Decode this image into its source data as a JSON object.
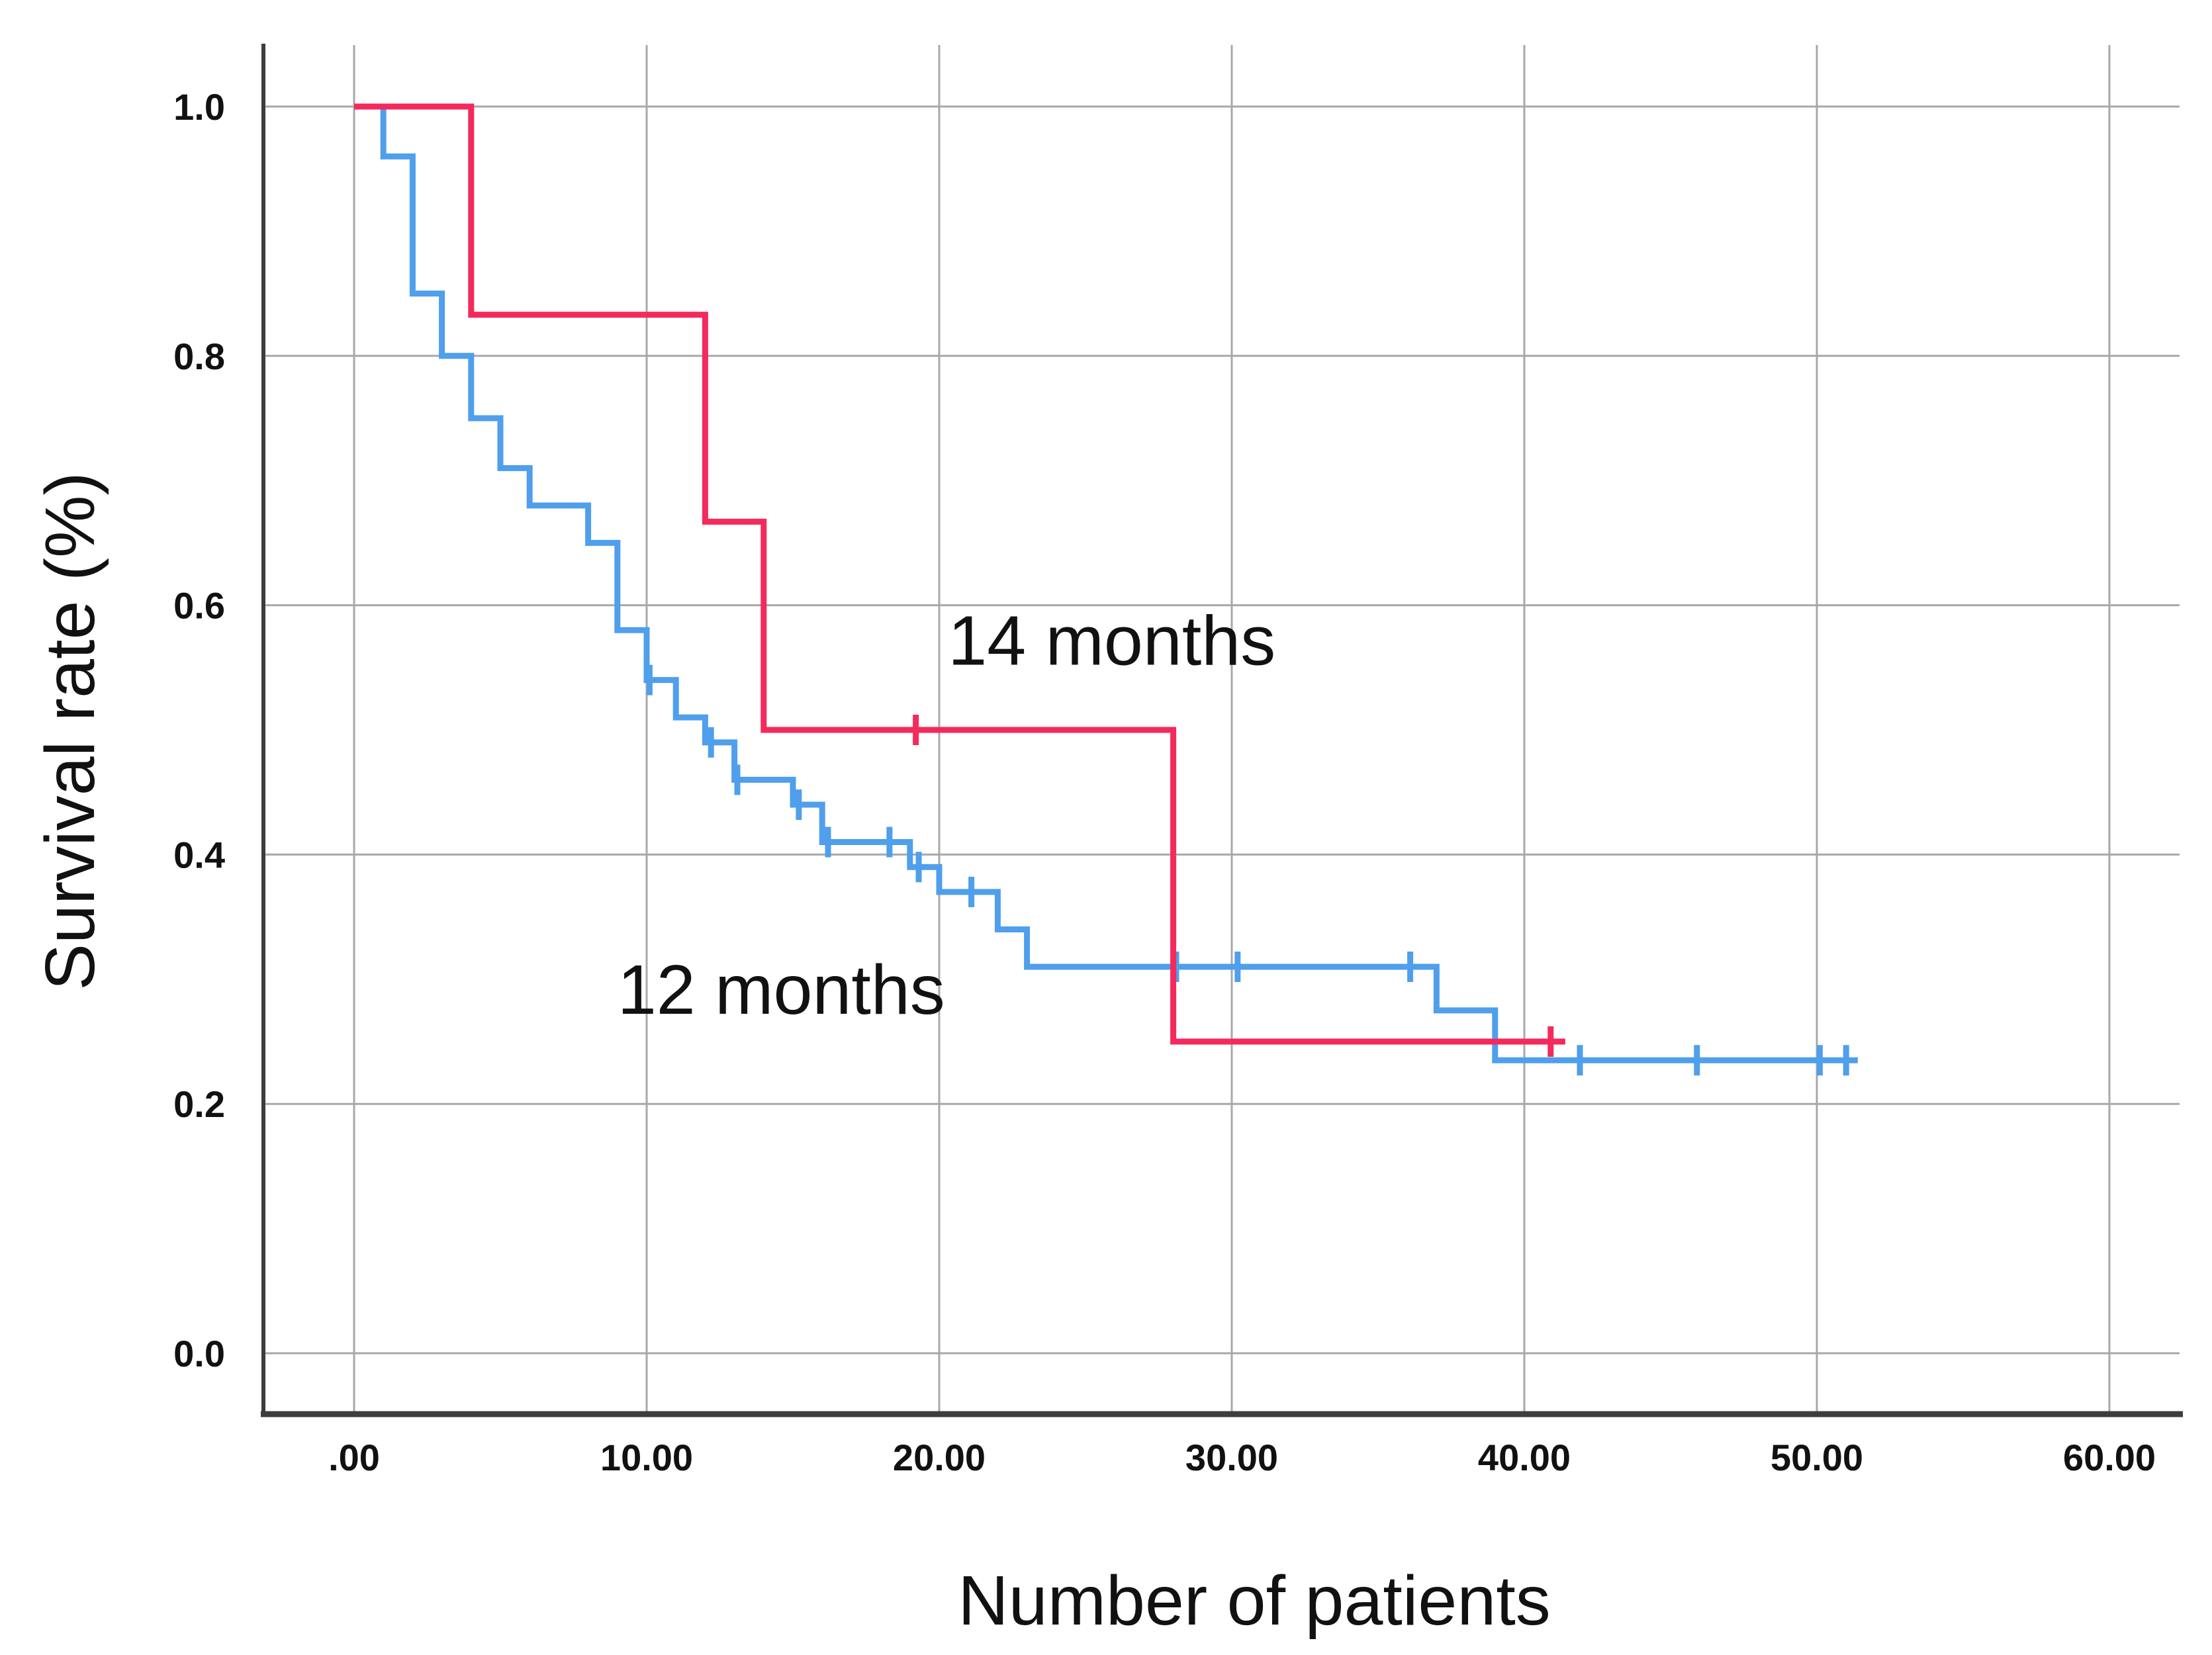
{
  "page": {
    "background": "#ffffff"
  },
  "colors": {
    "grid": "#A8A8A8",
    "axis": "#3D3D3D",
    "text": "#111111",
    "series_12_months": "#4F9FEC",
    "series_14_months": "#F42A5C"
  },
  "chart_data": {
    "type": "line",
    "subtype": "kaplan_meier_step_function",
    "title": "",
    "xlabel": "Number of patients",
    "ylabel": "Survival rate (%)",
    "xlim": [
      -3.1,
      62.4
    ],
    "ylim": [
      -0.048,
      1.049
    ],
    "grid": true,
    "legend_position": "none",
    "x_ticks": [
      {
        "value": 0,
        "label": ".00"
      },
      {
        "value": 10,
        "label": "10.00"
      },
      {
        "value": 20,
        "label": "20.00"
      },
      {
        "value": 30,
        "label": "30.00"
      },
      {
        "value": 40,
        "label": "40.00"
      },
      {
        "value": 50,
        "label": "50.00"
      },
      {
        "value": 60,
        "label": "60.00"
      }
    ],
    "y_ticks": [
      {
        "value": 0.0,
        "label": "0.0"
      },
      {
        "value": 0.2,
        "label": "0.2"
      },
      {
        "value": 0.4,
        "label": "0.4"
      },
      {
        "value": 0.6,
        "label": "0.6"
      },
      {
        "value": 0.8,
        "label": "0.8"
      },
      {
        "value": 1.0,
        "label": "1.0"
      }
    ],
    "series": [
      {
        "name": "12 months",
        "color": "#4F9FEC",
        "start": {
          "x": 0,
          "y": 1.0
        },
        "steps": [
          [
            1,
            0.96
          ],
          [
            2,
            0.85
          ],
          [
            3,
            0.8
          ],
          [
            4,
            0.75
          ],
          [
            5,
            0.71
          ],
          [
            6,
            0.68
          ],
          [
            8,
            0.65
          ],
          [
            9,
            0.58
          ],
          [
            10,
            0.54
          ],
          [
            11,
            0.51
          ],
          [
            12,
            0.49
          ],
          [
            13,
            0.46
          ],
          [
            15,
            0.44
          ],
          [
            16,
            0.41
          ],
          [
            19,
            0.39
          ],
          [
            20,
            0.37
          ],
          [
            22,
            0.34
          ],
          [
            23,
            0.31
          ],
          [
            37,
            0.275
          ],
          [
            39,
            0.235
          ]
        ],
        "end_x": 51.4,
        "censors": [
          [
            10.1,
            0.54
          ],
          [
            12.2,
            0.49
          ],
          [
            13.1,
            0.46
          ],
          [
            15.2,
            0.44
          ],
          [
            16.2,
            0.41
          ],
          [
            18.3,
            0.41
          ],
          [
            19.3,
            0.39
          ],
          [
            21.1,
            0.37
          ],
          [
            28.1,
            0.31
          ],
          [
            30.2,
            0.31
          ],
          [
            36.1,
            0.31
          ],
          [
            41.9,
            0.235
          ],
          [
            45.9,
            0.235
          ],
          [
            50.1,
            0.235
          ],
          [
            51.0,
            0.235
          ]
        ]
      },
      {
        "name": "14 months",
        "color": "#F42A5C",
        "start": {
          "x": 0,
          "y": 1.0
        },
        "steps": [
          [
            4,
            0.833
          ],
          [
            12,
            0.667
          ],
          [
            14,
            0.5
          ],
          [
            28,
            0.25
          ]
        ],
        "end_x": 41.4,
        "censors": [
          [
            19.2,
            0.5
          ],
          [
            40.9,
            0.25
          ]
        ]
      }
    ],
    "annotations": [
      {
        "text": "14 months",
        "x": 25.9,
        "y": 0.572
      },
      {
        "text": "12 months",
        "x": 14.6,
        "y": 0.292
      }
    ]
  }
}
